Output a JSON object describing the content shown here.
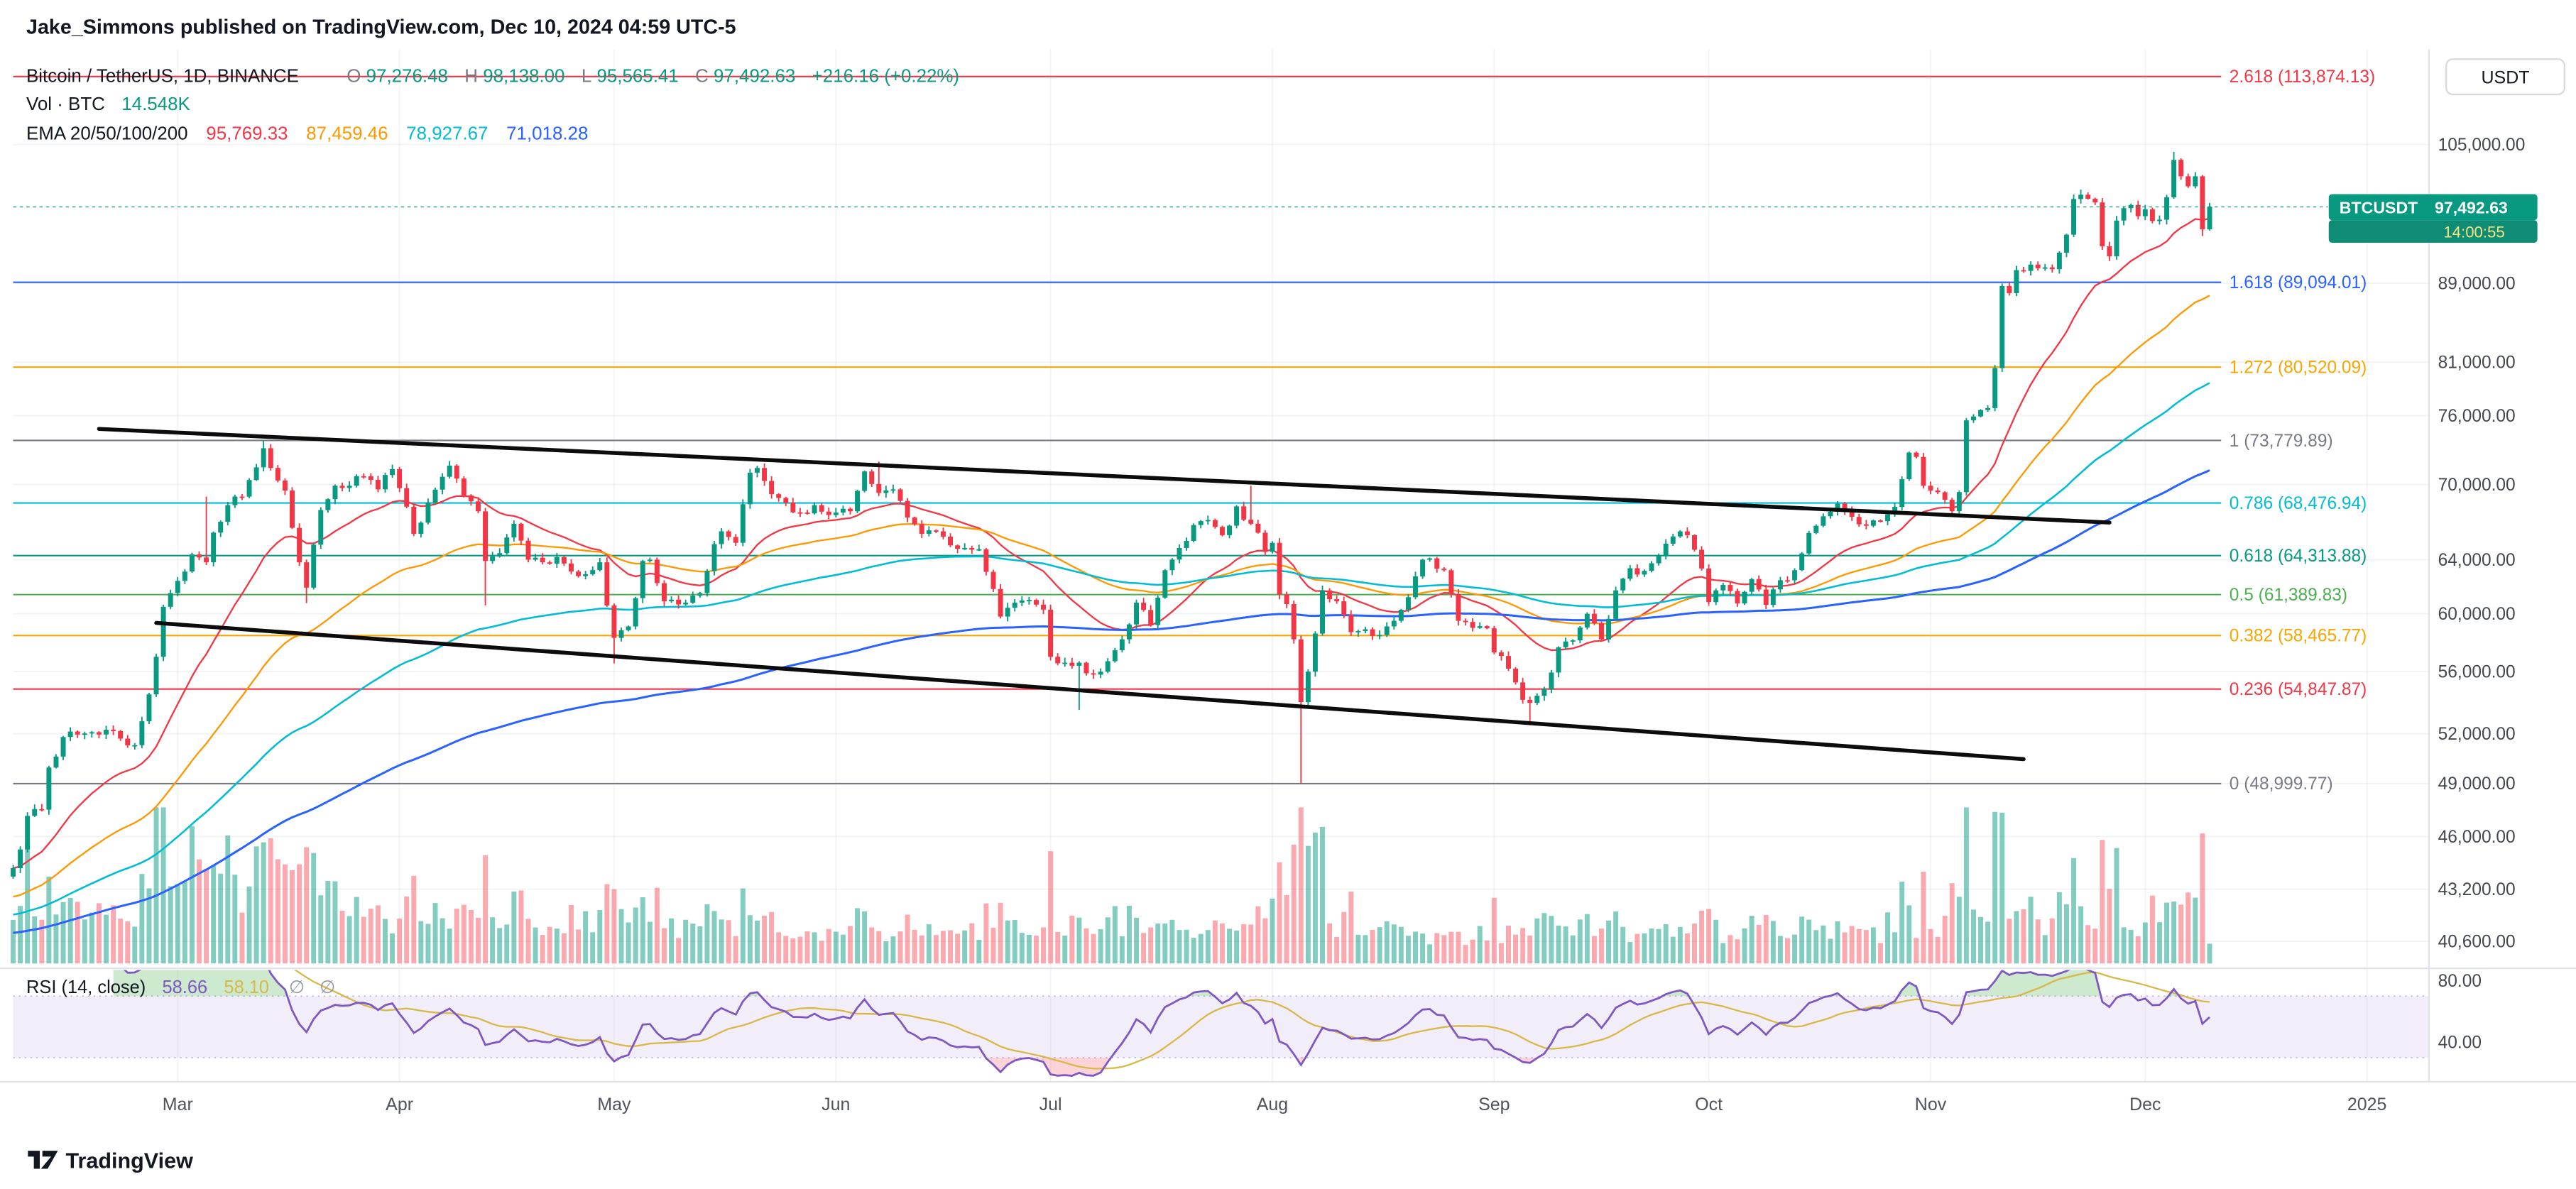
{
  "header": {
    "byline": "Jake_Simmons published on TradingView.com, Dec 10, 2024 04:59 UTC-5"
  },
  "footer": {
    "logo_text": "TradingView"
  },
  "toolbar": {
    "currency_button": "USDT"
  },
  "legend": {
    "title": "Bitcoin / TetherUS, 1D, BINANCE",
    "ohlc_labels": {
      "o": "O",
      "h": "H",
      "l": "L",
      "c": "C"
    },
    "volume_label": "Vol · BTC",
    "volume_value": "14.548K",
    "ema_label": "EMA 20/50/100/200"
  },
  "price_badge": {
    "symbol": "BTCUSDT",
    "price": "97,492.63",
    "countdown": "14:00:55",
    "bg": "#089981",
    "countdown_bg": "#0E8C76"
  },
  "rsi": {
    "label": "RSI (14, close)",
    "period": 14,
    "value_display": "58.66",
    "ma_value_display": "58.10",
    "na_marker": "∅",
    "overbought": 70,
    "oversold": 30,
    "axis_ticks": [
      {
        "v": 80,
        "label": "80.00"
      },
      {
        "v": 40,
        "label": "40.00"
      }
    ],
    "color": "#7E57C2",
    "ma_color": "#D9B84A",
    "band_fill": "rgba(126,87,194,0.10)"
  },
  "chart_data": {
    "type": "candlestick",
    "symbol": "BTCUSDT",
    "exchange": "BINANCE",
    "interval": "1D",
    "title": "Bitcoin / TetherUS, 1D, BINANCE",
    "price_scale": "log",
    "current_price": 97492.63,
    "ohlc": {
      "open": 97276.48,
      "high": 98138.0,
      "low": 95565.41,
      "close": 97492.63,
      "open_display": "97,276.48",
      "high_display": "98,138.00",
      "low_display": "95,565.41",
      "close_display": "97,492.63",
      "change": "+216.16 (+0.22%)"
    },
    "volume_display": "14.548K",
    "colors": {
      "up": "#089981",
      "down": "#F23645",
      "volume_up": "rgba(8,153,129,0.5)",
      "volume_down": "rgba(247,82,95,0.5)",
      "trend_line": "#0C0C0C",
      "grid": "rgba(42,46,57,0.06)",
      "current_price_line": "#089981",
      "axis_text": "#42464F",
      "time_text": "#50535E"
    },
    "y_axis": {
      "scale": "log",
      "ticks": [
        {
          "v": 105000,
          "label": "105,000.00"
        },
        {
          "v": 89000,
          "label": "89,000.00"
        },
        {
          "v": 81000,
          "label": "81,000.00"
        },
        {
          "v": 76000,
          "label": "76,000.00"
        },
        {
          "v": 70000,
          "label": "70,000.00"
        },
        {
          "v": 64000,
          "label": "64,000.00"
        },
        {
          "v": 60000,
          "label": "60,000.00"
        },
        {
          "v": 56000,
          "label": "56,000.00"
        },
        {
          "v": 52000,
          "label": "52,000.00"
        },
        {
          "v": 49000,
          "label": "49,000.00"
        },
        {
          "v": 46000,
          "label": "46,000.00"
        },
        {
          "v": 43200,
          "label": "43,200.00"
        },
        {
          "v": 40600,
          "label": "40,600.00"
        }
      ]
    },
    "x_axis": {
      "labels": [
        {
          "label": "Mar",
          "day": 23
        },
        {
          "label": "Apr",
          "day": 54
        },
        {
          "label": "May",
          "day": 84
        },
        {
          "label": "Jun",
          "day": 115
        },
        {
          "label": "Jul",
          "day": 145
        },
        {
          "label": "Aug",
          "day": 176
        },
        {
          "label": "Sep",
          "day": 207
        },
        {
          "label": "Oct",
          "day": 237
        },
        {
          "label": "Nov",
          "day": 268
        },
        {
          "label": "Dec",
          "day": 298
        },
        {
          "label": "2025",
          "day": 329
        }
      ]
    },
    "fib_levels": [
      {
        "level": "2.618",
        "price": 113874.13,
        "label": "2.618 (113,874.13)",
        "color": "#F23645"
      },
      {
        "level": "1.618",
        "price": 89094.01,
        "label": "1.618 (89,094.01)",
        "color": "#2962FF"
      },
      {
        "level": "1.272",
        "price": 80520.09,
        "label": "1.272 (80,520.09)",
        "color": "#F7A600"
      },
      {
        "level": "1",
        "price": 73779.89,
        "label": "1 (73,779.89)",
        "color": "#787B86"
      },
      {
        "level": "0.786",
        "price": 68476.94,
        "label": "0.786 (68,476.94)",
        "color": "#00BCD4"
      },
      {
        "level": "0.618",
        "price": 64313.88,
        "label": "0.618 (64,313.88)",
        "color": "#089981"
      },
      {
        "level": "0.5",
        "price": 61389.83,
        "label": "0.5 (61,389.83)",
        "color": "#4CAF50"
      },
      {
        "level": "0.382",
        "price": 58465.77,
        "label": "0.382 (58,465.77)",
        "color": "#F7A600"
      },
      {
        "level": "0.236",
        "price": 54847.87,
        "label": "0.236 (54,847.87)",
        "color": "#F23645"
      },
      {
        "level": "0",
        "price": 48999.77,
        "label": "0 (48,999.77)",
        "color": "#787B86"
      }
    ],
    "trend_lines": [
      {
        "d1": 12,
        "p1": 74800,
        "d2": 293,
        "p2": 66900
      },
      {
        "d1": 20,
        "p1": 59350,
        "d2": 281,
        "p2": 50450
      }
    ],
    "emas": [
      {
        "period": 20,
        "color": "#F23645",
        "value_display": "95,769.33",
        "value": 95769.33
      },
      {
        "period": 50,
        "color": "#FF9800",
        "value_display": "87,459.46",
        "value": 87459.46
      },
      {
        "period": 100,
        "color": "#00BCD4",
        "value_display": "78,927.67",
        "value": 78927.67
      },
      {
        "period": 200,
        "color": "#2962FF",
        "value_display": "71,018.28",
        "value": 71018.28
      }
    ],
    "anchors": [
      [
        0,
        44300
      ],
      [
        1,
        45300
      ],
      [
        2,
        47150
      ],
      [
        4,
        47500
      ],
      [
        5,
        49950
      ],
      [
        7,
        51800
      ],
      [
        9,
        51950
      ],
      [
        11,
        52100
      ],
      [
        13,
        52250
      ],
      [
        15,
        51700
      ],
      [
        17,
        51300
      ],
      [
        19,
        54500
      ],
      [
        20,
        57000
      ],
      [
        21,
        60500
      ],
      [
        22,
        61500
      ],
      [
        23,
        62400
      ],
      [
        24,
        63100
      ],
      [
        25,
        64400
      ],
      [
        27,
        63800,
        69000,
        null
      ],
      [
        28,
        66100
      ],
      [
        30,
        68300
      ],
      [
        32,
        69000
      ],
      [
        34,
        71450
      ],
      [
        35,
        73100,
        73780,
        null
      ],
      [
        36,
        71400
      ],
      [
        38,
        69500
      ],
      [
        40,
        63800
      ],
      [
        41,
        61900,
        null,
        60770
      ],
      [
        43,
        67900
      ],
      [
        45,
        69900
      ],
      [
        47,
        69900
      ],
      [
        49,
        70700
      ],
      [
        51,
        69600
      ],
      [
        53,
        71300
      ],
      [
        54,
        69700
      ],
      [
        56,
        66000
      ],
      [
        58,
        68500
      ],
      [
        61,
        71600
      ],
      [
        63,
        69100
      ],
      [
        65,
        67800
      ],
      [
        66,
        63900,
        null,
        60600
      ],
      [
        68,
        64500
      ],
      [
        70,
        66800
      ],
      [
        72,
        64000
      ],
      [
        74,
        63800
      ],
      [
        76,
        64200
      ],
      [
        78,
        63100
      ],
      [
        80,
        62900
      ],
      [
        82,
        63800
      ],
      [
        83,
        60600
      ],
      [
        84,
        58300,
        null,
        56550
      ],
      [
        86,
        59100
      ],
      [
        88,
        63900
      ],
      [
        89,
        64000
      ],
      [
        91,
        60900
      ],
      [
        94,
        60800
      ],
      [
        96,
        61500
      ],
      [
        98,
        65200
      ],
      [
        99,
        66200
      ],
      [
        101,
        65300
      ],
      [
        103,
        71000
      ],
      [
        104,
        71400
      ],
      [
        106,
        69200
      ],
      [
        108,
        68500
      ],
      [
        110,
        67700
      ],
      [
        112,
        68300
      ],
      [
        114,
        67500
      ],
      [
        115,
        67700
      ],
      [
        117,
        67800
      ],
      [
        119,
        71100
      ],
      [
        121,
        69300,
        71950,
        null
      ],
      [
        123,
        69600
      ],
      [
        125,
        67300
      ],
      [
        127,
        66000
      ],
      [
        129,
        66200
      ],
      [
        131,
        65100
      ],
      [
        133,
        64900
      ],
      [
        135,
        64800
      ],
      [
        137,
        61800
      ],
      [
        138,
        59800
      ],
      [
        140,
        60800
      ],
      [
        142,
        61000
      ],
      [
        144,
        60300
      ],
      [
        145,
        57000
      ],
      [
        147,
        56600
      ],
      [
        149,
        56600,
        null,
        53500
      ],
      [
        151,
        55800
      ],
      [
        153,
        56700
      ],
      [
        155,
        58200
      ],
      [
        157,
        60800
      ],
      [
        159,
        59200
      ],
      [
        161,
        63200
      ],
      [
        163,
        64900
      ],
      [
        165,
        66700
      ],
      [
        167,
        67100
      ],
      [
        169,
        65900
      ],
      [
        171,
        68200
      ],
      [
        173,
        66800,
        69900,
        null
      ],
      [
        175,
        64600
      ],
      [
        176,
        65300
      ],
      [
        177,
        61400
      ],
      [
        178,
        60700
      ],
      [
        179,
        58200
      ],
      [
        180,
        54000,
        null,
        49000
      ],
      [
        181,
        56000
      ],
      [
        183,
        61700
      ],
      [
        185,
        60900
      ],
      [
        187,
        58700
      ],
      [
        189,
        58900
      ],
      [
        191,
        58500
      ],
      [
        193,
        59500
      ],
      [
        195,
        61200
      ],
      [
        197,
        64000
      ],
      [
        198,
        64100
      ],
      [
        200,
        63200
      ],
      [
        202,
        59500
      ],
      [
        204,
        59000
      ],
      [
        206,
        58970
      ],
      [
        207,
        57300
      ],
      [
        209,
        56200
      ],
      [
        211,
        54150
      ],
      [
        212,
        53950,
        null,
        52530
      ],
      [
        214,
        54850
      ],
      [
        216,
        57650
      ],
      [
        218,
        58130
      ],
      [
        220,
        60000
      ],
      [
        222,
        58200
      ],
      [
        224,
        61700
      ],
      [
        226,
        63350
      ],
      [
        228,
        63150
      ],
      [
        230,
        64300
      ],
      [
        232,
        65800
      ],
      [
        234,
        65900
      ],
      [
        236,
        63330
      ],
      [
        237,
        60840
      ],
      [
        239,
        62100
      ],
      [
        241,
        60750
      ],
      [
        243,
        62540
      ],
      [
        245,
        60640
      ],
      [
        247,
        62450
      ],
      [
        249,
        63200
      ],
      [
        251,
        66070
      ],
      [
        253,
        67400
      ],
      [
        255,
        68420
      ],
      [
        257,
        67350
      ],
      [
        259,
        66640
      ],
      [
        261,
        67010
      ],
      [
        263,
        68160
      ],
      [
        265,
        72720
      ],
      [
        266,
        72340
      ],
      [
        267,
        69900
      ],
      [
        268,
        69500
      ],
      [
        269,
        69360
      ],
      [
        270,
        68740
      ],
      [
        271,
        67810
      ],
      [
        272,
        69370
      ],
      [
        273,
        75570
      ],
      [
        274,
        75920
      ],
      [
        275,
        76500
      ],
      [
        276,
        76680
      ],
      [
        277,
        80430
      ],
      [
        278,
        88700
      ],
      [
        279,
        87950
      ],
      [
        280,
        90400
      ],
      [
        282,
        91000
      ],
      [
        283,
        90600
      ],
      [
        285,
        90500
      ],
      [
        286,
        92300
      ],
      [
        287,
        94300
      ],
      [
        288,
        98400
      ],
      [
        289,
        98900,
        99500,
        null
      ],
      [
        291,
        98000
      ],
      [
        292,
        93000
      ],
      [
        293,
        91900
      ],
      [
        294,
        95900
      ],
      [
        296,
        97700
      ],
      [
        297,
        96400
      ],
      [
        298,
        97200
      ],
      [
        299,
        95850
      ],
      [
        300,
        96000
      ],
      [
        301,
        98600
      ],
      [
        302,
        103100,
        104088,
        null
      ],
      [
        303,
        101100
      ],
      [
        304,
        99900
      ],
      [
        305,
        101100
      ],
      [
        306,
        94900,
        null,
        94150
      ],
      [
        307,
        97492.63
      ]
    ],
    "volume_envelope": [
      [
        0,
        1.1
      ],
      [
        5,
        1.5
      ],
      [
        13,
        1.2
      ],
      [
        21,
        1.9
      ],
      [
        27,
        2.1
      ],
      [
        35,
        1.7
      ],
      [
        41,
        1.5
      ],
      [
        50,
        1.1
      ],
      [
        60,
        0.9
      ],
      [
        66,
        1.2
      ],
      [
        84,
        1.0
      ],
      [
        99,
        0.8
      ],
      [
        104,
        0.9
      ],
      [
        115,
        0.7
      ],
      [
        138,
        0.8
      ],
      [
        145,
        0.9
      ],
      [
        149,
        1.0
      ],
      [
        160,
        0.7
      ],
      [
        173,
        0.8
      ],
      [
        180,
        1.9
      ],
      [
        185,
        1.0
      ],
      [
        198,
        0.7
      ],
      [
        207,
        0.8
      ],
      [
        212,
        0.9
      ],
      [
        224,
        0.6
      ],
      [
        237,
        0.7
      ],
      [
        251,
        0.7
      ],
      [
        265,
        0.9
      ],
      [
        273,
        1.3
      ],
      [
        278,
        1.5
      ],
      [
        283,
        1.1
      ],
      [
        288,
        1.4
      ],
      [
        293,
        1.2
      ],
      [
        297,
        0.9
      ],
      [
        302,
        1.2
      ],
      [
        306,
        1.0
      ],
      [
        307,
        0.5
      ]
    ]
  }
}
